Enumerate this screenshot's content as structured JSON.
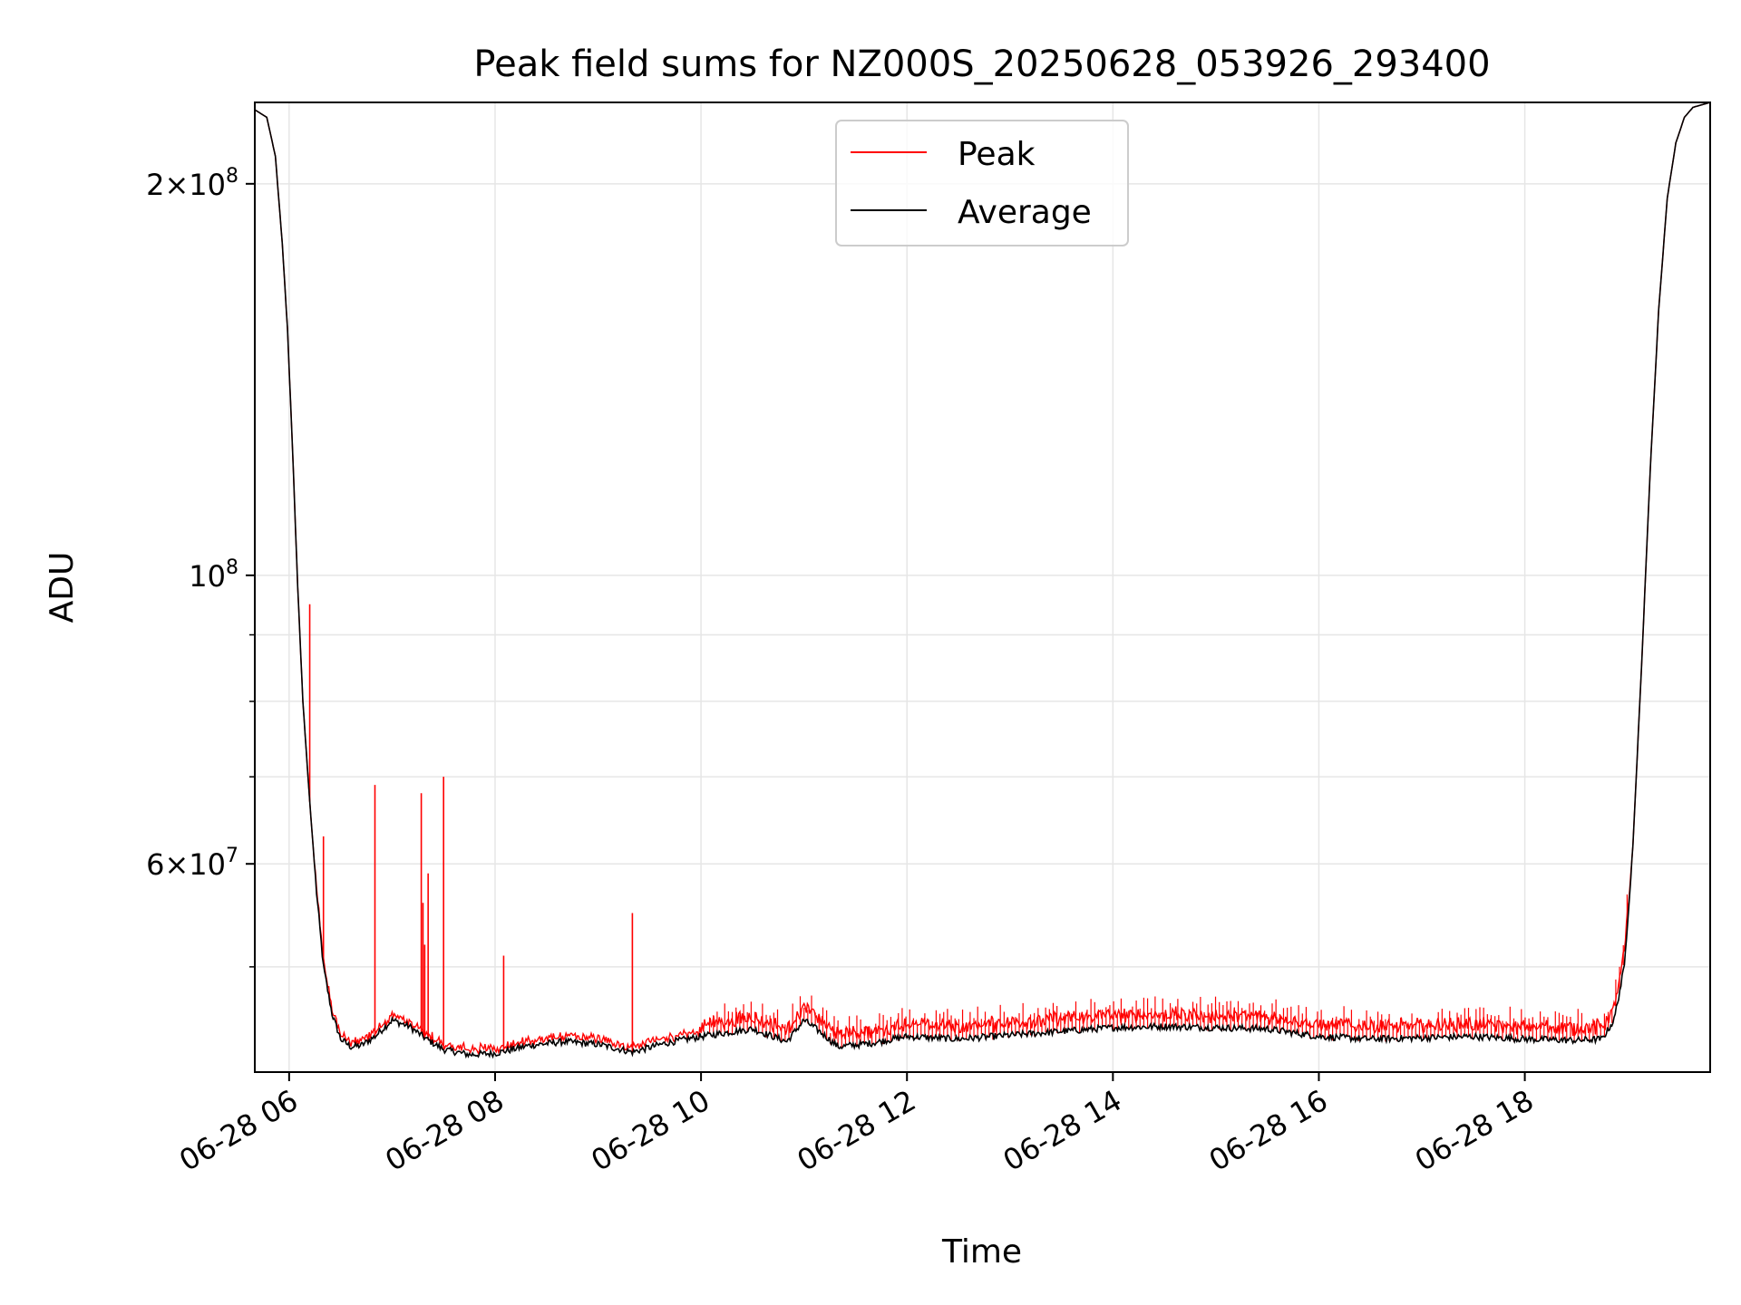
{
  "chart_data": {
    "type": "line",
    "title": "Peak field sums for NZ000S_20250628_053926_293400",
    "xlabel": "Time",
    "ylabel": "ADU",
    "yscale": "log",
    "ylim": [
      41500000,
      231000000
    ],
    "xlim": [
      "2025-06-28 05:40",
      "2025-06-28 19:48"
    ],
    "grid": true,
    "legend": {
      "position": "top-center",
      "entries": [
        "Peak",
        "Average"
      ]
    },
    "colors": {
      "Peak": "#ff0000",
      "Average": "#000000"
    },
    "x_ticks": [
      {
        "value": "2025-06-28 06:00",
        "label": "06-28 06"
      },
      {
        "value": "2025-06-28 08:00",
        "label": "06-28 08"
      },
      {
        "value": "2025-06-28 10:00",
        "label": "06-28 10"
      },
      {
        "value": "2025-06-28 12:00",
        "label": "06-28 12"
      },
      {
        "value": "2025-06-28 14:00",
        "label": "06-28 14"
      },
      {
        "value": "2025-06-28 16:00",
        "label": "06-28 16"
      },
      {
        "value": "2025-06-28 18:00",
        "label": "06-28 18"
      }
    ],
    "y_ticks_major": [
      {
        "value": 60000000,
        "label_mant": "6",
        "label_exp": "7"
      },
      {
        "value": 100000000,
        "label_mant": "",
        "label_exp": "8"
      },
      {
        "value": 200000000,
        "label_mant": "2",
        "label_exp": "8"
      }
    ],
    "y_ticks_minor": [
      50000000,
      70000000,
      80000000,
      90000000
    ],
    "series": [
      {
        "name": "Average",
        "x": [
          "2025-06-28 05:40",
          "2025-06-28 05:47",
          "2025-06-28 05:52",
          "2025-06-28 05:56",
          "2025-06-28 05:59",
          "2025-06-28 06:02",
          "2025-06-28 06:05",
          "2025-06-28 06:08",
          "2025-06-28 06:12",
          "2025-06-28 06:16",
          "2025-06-28 06:20",
          "2025-06-28 06:25",
          "2025-06-28 06:30",
          "2025-06-28 06:36",
          "2025-06-28 06:42",
          "2025-06-28 06:50",
          "2025-06-28 07:00",
          "2025-06-28 07:10",
          "2025-06-28 07:20",
          "2025-06-28 07:30",
          "2025-06-28 07:45",
          "2025-06-28 08:00",
          "2025-06-28 08:20",
          "2025-06-28 08:40",
          "2025-06-28 09:00",
          "2025-06-28 09:20",
          "2025-06-28 09:40",
          "2025-06-28 10:00",
          "2025-06-28 10:30",
          "2025-06-28 10:50",
          "2025-06-28 11:00",
          "2025-06-28 11:10",
          "2025-06-28 11:20",
          "2025-06-28 11:40",
          "2025-06-28 12:00",
          "2025-06-28 12:30",
          "2025-06-28 13:00",
          "2025-06-28 13:30",
          "2025-06-28 14:00",
          "2025-06-28 14:30",
          "2025-06-28 15:00",
          "2025-06-28 15:30",
          "2025-06-28 16:00",
          "2025-06-28 16:30",
          "2025-06-28 17:00",
          "2025-06-28 17:30",
          "2025-06-28 18:00",
          "2025-06-28 18:30",
          "2025-06-28 18:45",
          "2025-06-28 18:52",
          "2025-06-28 18:58",
          "2025-06-28 19:03",
          "2025-06-28 19:08",
          "2025-06-28 19:13",
          "2025-06-28 19:18",
          "2025-06-28 19:23",
          "2025-06-28 19:28",
          "2025-06-28 19:33",
          "2025-06-28 19:38",
          "2025-06-28 19:43",
          "2025-06-28 19:48"
        ],
        "y": [
          228000000,
          225000000,
          210000000,
          180000000,
          155000000,
          125000000,
          98000000,
          80000000,
          67000000,
          57000000,
          50000000,
          46000000,
          44000000,
          43400000,
          43500000,
          44200000,
          45500000,
          45000000,
          44000000,
          43200000,
          42800000,
          42900000,
          43500000,
          43800000,
          43600000,
          43000000,
          43700000,
          44200000,
          44800000,
          43800000,
          45500000,
          44500000,
          43400000,
          43700000,
          44200000,
          44000000,
          44300000,
          44600000,
          44900000,
          45000000,
          44900000,
          44800000,
          44200000,
          44000000,
          44100000,
          44200000,
          44000000,
          43900000,
          44000000,
          45500000,
          50000000,
          62000000,
          85000000,
          120000000,
          160000000,
          195000000,
          215000000,
          225000000,
          229000000,
          230000000,
          231000000
        ]
      }
    ],
    "peak_spikes": [
      {
        "x": "2025-06-28 06:12",
        "y": 95000000
      },
      {
        "x": "2025-06-28 06:20",
        "y": 63000000
      },
      {
        "x": "2025-06-28 06:50",
        "y": 69000000
      },
      {
        "x": "2025-06-28 07:17",
        "y": 68000000
      },
      {
        "x": "2025-06-28 07:18",
        "y": 56000000
      },
      {
        "x": "2025-06-28 07:19",
        "y": 52000000
      },
      {
        "x": "2025-06-28 07:21",
        "y": 59000000
      },
      {
        "x": "2025-06-28 07:30",
        "y": 70000000
      },
      {
        "x": "2025-06-28 08:05",
        "y": 51000000
      },
      {
        "x": "2025-06-28 09:20",
        "y": 55000000
      }
    ]
  }
}
